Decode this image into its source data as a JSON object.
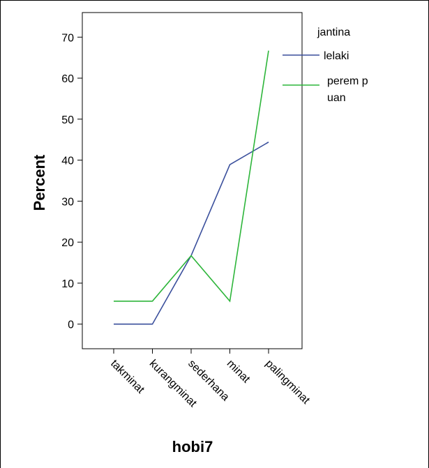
{
  "chart_data": {
    "type": "line",
    "categories": [
      "takminat",
      "kurangminat",
      "sederhana",
      "minat",
      "palingminat"
    ],
    "series": [
      {
        "name": "lelaki",
        "values": [
          0,
          0,
          16.7,
          38.9,
          44.4
        ],
        "color": "#3a4f9c"
      },
      {
        "name": "perempuan",
        "values": [
          5.6,
          5.6,
          16.7,
          5.6,
          66.7
        ],
        "color": "#2db53a"
      }
    ],
    "xlabel": "hobi7",
    "ylabel": "Percent",
    "ylim": [
      -6,
      76
    ],
    "yticks": [
      0,
      10,
      20,
      30,
      40,
      50,
      60,
      70
    ],
    "legend": {
      "title": "jantina",
      "placement": "right",
      "labels": [
        "lelaki",
        "perem p",
        "uan"
      ]
    },
    "grid": false
  }
}
